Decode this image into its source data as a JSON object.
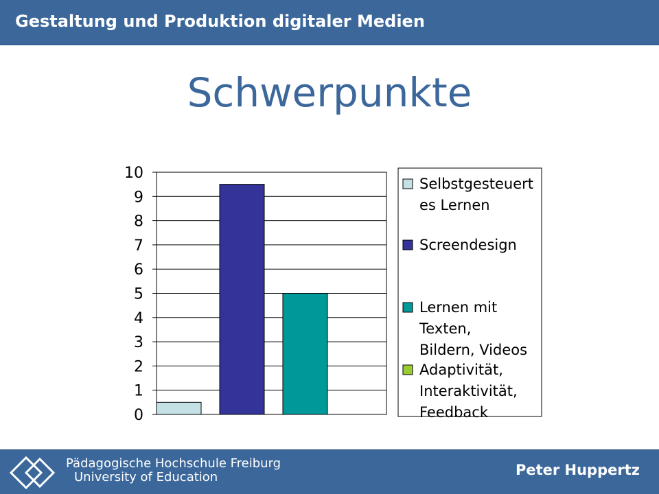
{
  "header": {
    "title": "Gestaltung und Produktion digitaler Medien"
  },
  "slide": {
    "title": "Schwerpunkte"
  },
  "colors": {
    "band": "#3b679a",
    "selbst": "#c4e2e6",
    "screen": "#333399",
    "lernen": "#009999",
    "adapt": "#99cc33"
  },
  "chart_data": {
    "type": "bar",
    "title": "",
    "xlabel": "",
    "ylabel": "",
    "ylim": [
      0,
      10
    ],
    "yticks": [
      0,
      1,
      2,
      3,
      4,
      5,
      6,
      7,
      8,
      9,
      10
    ],
    "grid": true,
    "legend_position": "right",
    "series": [
      {
        "name": "Selbstgesteuertes Lernen",
        "legend_lines": [
          "Selbstgesteuert",
          "es Lernen"
        ],
        "value": 0.5,
        "color": "#c4e2e6"
      },
      {
        "name": "Screendesign",
        "legend_lines": [
          "Screendesign"
        ],
        "value": 9.5,
        "color": "#333399"
      },
      {
        "name": "Lernen mit Texten, Bildern, Videos",
        "legend_lines": [
          "Lernen mit",
          "Texten,",
          "Bildern, Videos"
        ],
        "value": 5,
        "color": "#009999"
      },
      {
        "name": "Adaptivität, Interaktivität, Feedback",
        "legend_lines": [
          "Adaptivität,",
          "Interaktivität,",
          "Feedback"
        ],
        "value": 0,
        "color": "#99cc33"
      }
    ]
  },
  "footer": {
    "institution": "Pädagogische Hochschule Freiburg",
    "university": "University of Education",
    "author": "Peter Huppertz",
    "logo_icon": "diamond-logo-icon"
  }
}
